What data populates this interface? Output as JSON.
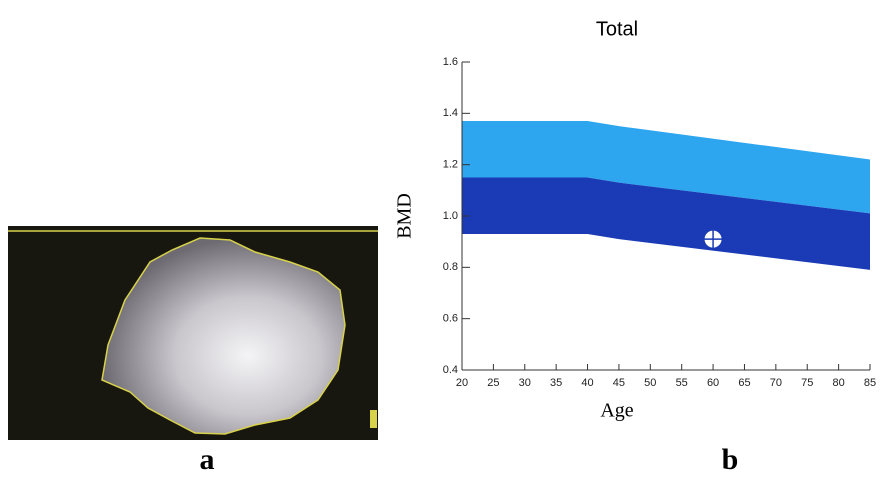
{
  "panel_labels": [
    "a",
    "b"
  ],
  "chart_data": {
    "type": "band",
    "title": "Total",
    "x_label": "Age",
    "y_label": "BMD",
    "x": [
      20,
      40,
      45,
      85
    ],
    "bands": [
      {
        "color": "#2ea6ef",
        "low": [
          1.15,
          1.15,
          1.13,
          1.01
        ],
        "high": [
          1.37,
          1.37,
          1.35,
          1.22
        ]
      },
      {
        "color": "#1a3bb5",
        "low": [
          0.93,
          0.93,
          0.91,
          0.79
        ],
        "high": [
          1.15,
          1.15,
          1.13,
          1.01
        ]
      }
    ],
    "points": {
      "x": [
        60
      ],
      "y": [
        0.91
      ],
      "color": "#ffffff"
    },
    "xlim": [
      20,
      85
    ],
    "ylim": [
      0.4,
      1.6
    ],
    "xticks": [
      20,
      25,
      30,
      35,
      40,
      45,
      50,
      55,
      60,
      65,
      70,
      75,
      80,
      85
    ],
    "yticks": [
      0.4,
      0.6,
      0.8,
      {
        "value": 1,
        "label": "1.0"
      },
      1.2,
      1.4,
      1.6
    ]
  }
}
